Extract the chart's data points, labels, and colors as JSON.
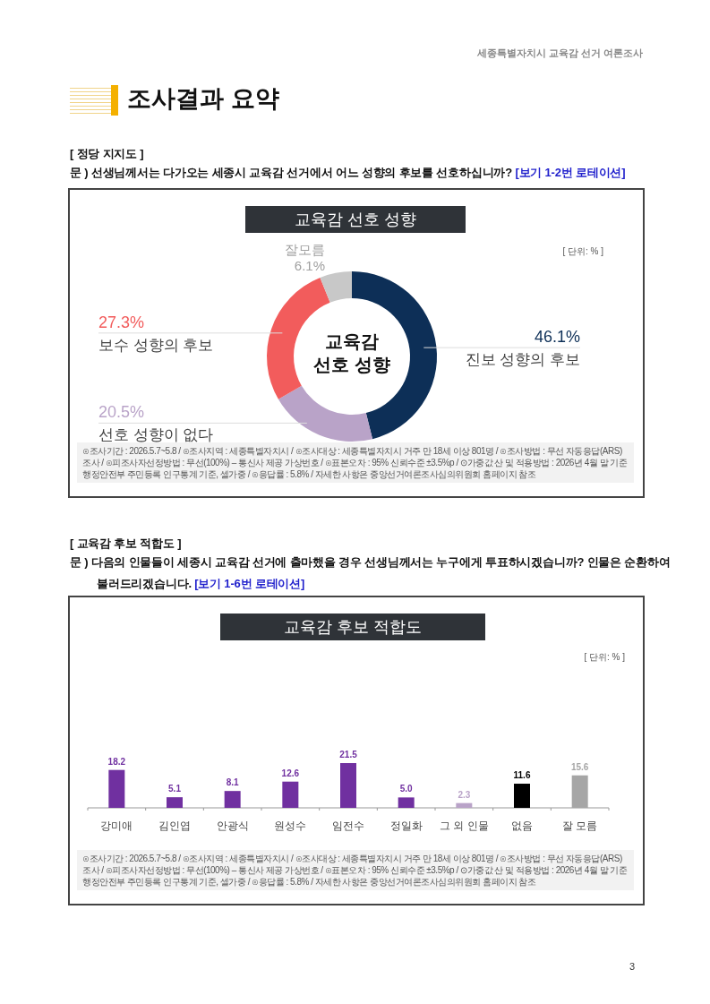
{
  "chart_data": [
    {
      "type": "donut",
      "title": "교육감 선호 성향",
      "subtitle": "문 )  선생님께서는 다가오는 세종시 교육감 선거에서 어느 성향의 후보를 선호하십니까?",
      "categories": [
        "진보 성향의 후보",
        "선호 성향이 없다",
        "보수 성향의 후보",
        "잘모름"
      ],
      "values": [
        46.1,
        20.5,
        27.3,
        6.1
      ],
      "colors": [
        "#0d2f57",
        "#b9a3c8",
        "#f25c5c",
        "#c8c8c8"
      ],
      "value_labels": [
        "46.1%",
        "20.5%",
        "27.3%",
        "6.1%"
      ],
      "annotations": [
        "세종특별자치시 교육감 선거 여론조사",
        "조사결과 요약",
        "[ 정당 지지도 ]",
        "[보기 1-2번 로테이션]",
        "[ 단위: % ]",
        "교육감 선호 성향",
        "⊙조사기간 : 2026.5.7~5.8 / ⊙조사지역 : 세종특별자치시 / ⊙조사대상 : 세종특별자치시 거주 만 18세 이상 801명 / ⊙조사방법 : 무선 자동응답(ARS) 조사 / ⊙피조사자선정방법 : 무선(100%) – 통신사 제공 가상번호 / ⊙표본오차 : 95% 신뢰수준 ±3.5%p / ⊙가중값 산 및 적용방법 : 2026년 4월 말 기준 행정안전부 주민등록 인구통계 기준, 셀가중 / ⊙응답률 : 5.8% / 자세한 사항은 중앙선거여론조사심의위원회 홈페이지 참조"
      ]
    },
    {
      "type": "bar",
      "title": "교육감 후보 적합도",
      "subtitle": "문 )  다음의 인물들이 세종시 교육감 선거에 출마했을 경우 선생님께서는 누구에게 투표하시겠습니까? 인물은 순환하여 불러드리겠습니다.",
      "categories": [
        "강미애",
        "김인엽",
        "안광식",
        "원성수",
        "임전수",
        "정일화",
        "그 외 인물",
        "없음",
        "잘 모름"
      ],
      "values": [
        18.2,
        5.1,
        8.1,
        12.6,
        21.5,
        5.0,
        2.3,
        11.6,
        15.6
      ],
      "colors": [
        "#7030a0",
        "#7030a0",
        "#7030a0",
        "#7030a0",
        "#7030a0",
        "#7030a0",
        "#b9a3c8",
        "#000000",
        "#a6a6a6"
      ],
      "value_labels": [
        "18.2",
        "5.1",
        "8.1",
        "12.6",
        "21.5",
        "5.0",
        "2.3",
        "11.6",
        "15.6"
      ],
      "annotations": [
        "[ 교육감 후보 적합도 ]",
        "[보기 1-6번 로테이션]",
        "[ 단위: % ]",
        "⊙조사기간 : 2026.5.7~5.8 / ⊙조사지역 : 세종특별자치시 / ⊙조사대상 : 세종특별자치시 거주 만 18세 이상 801명 / ⊙조사방법 : 무선 자동응답(ARS) 조사 / ⊙피조사자선정방법 : 무선(100%) – 통신사 제공 가상번호 / ⊙표본오차 : 95% 신뢰수준 ±3.5%p / ⊙가중값 산 및 적용방법 : 2026년 4월 말 기준 행정안전부 주민등록 인구통계 기준, 셀가중 / ⊙응답률 : 5.8% / 자세한 사항은 중앙선거여론조사심의위원회 홈페이지 참조",
        "3"
      ]
    }
  ]
}
